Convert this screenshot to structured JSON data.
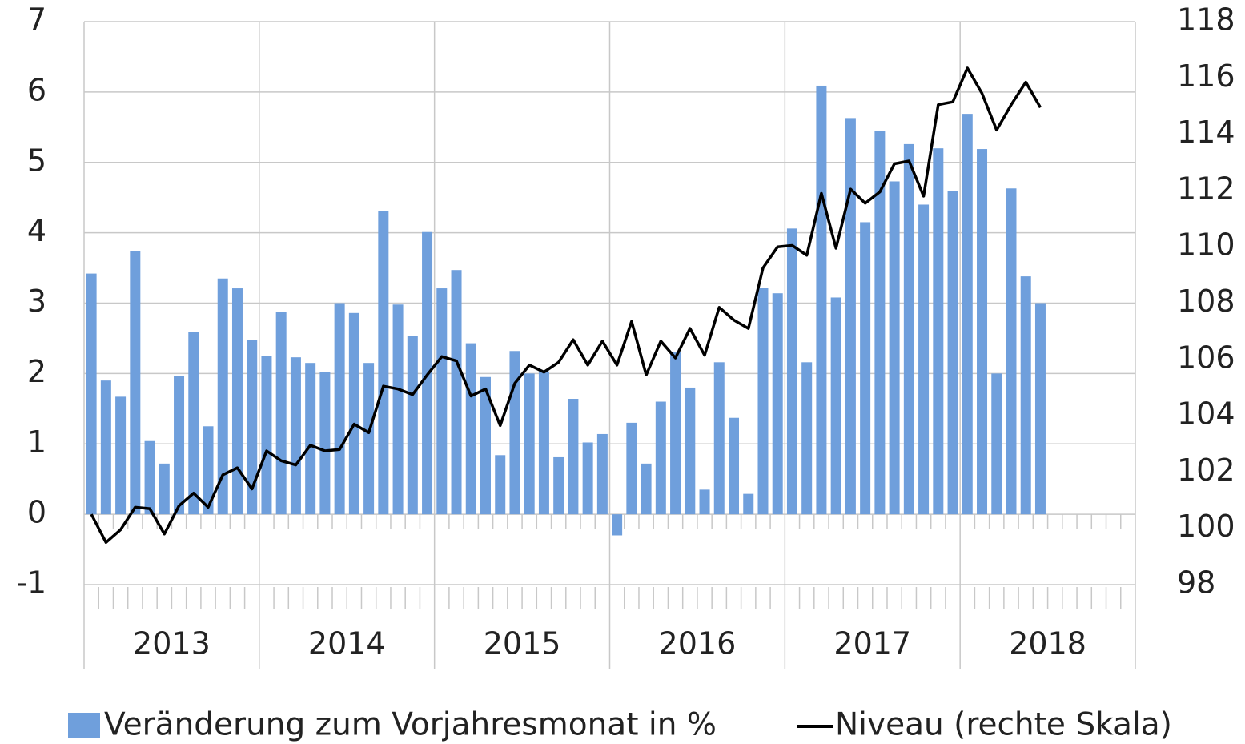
{
  "chart_data": {
    "type": "bar_line",
    "year_labels": [
      "2013",
      "2014",
      "2015",
      "2016",
      "2017",
      "2018"
    ],
    "categories": [
      null,
      null,
      null,
      null,
      null,
      null,
      null,
      null,
      null,
      null,
      null,
      null,
      null,
      null,
      null,
      null,
      null,
      null,
      null,
      null,
      null,
      null,
      null,
      null,
      null,
      null,
      null,
      null,
      null,
      null,
      null,
      null,
      null,
      null,
      null,
      null,
      null,
      null,
      null,
      null,
      null,
      null,
      null,
      null,
      null,
      null,
      null,
      null,
      null,
      null,
      null,
      null,
      null,
      null,
      null,
      null,
      null,
      null,
      null,
      null,
      null,
      null,
      null,
      null,
      null,
      null,
      null,
      null,
      null,
      null,
      null,
      null
    ],
    "series": [
      {
        "name": "Veränderung zum Vorjahresmonat in %",
        "color": "#6f9fdc",
        "type": "bar",
        "values": [
          3.42,
          1.9,
          1.67,
          3.74,
          1.04,
          0.72,
          1.97,
          2.59,
          1.25,
          3.35,
          3.21,
          2.48,
          2.25,
          2.87,
          2.23,
          2.15,
          2.02,
          3.0,
          2.86,
          2.15,
          4.31,
          2.98,
          2.53,
          4.01,
          3.21,
          3.47,
          2.43,
          1.95,
          0.84,
          2.32,
          2.0,
          2.03,
          0.81,
          1.64,
          1.02,
          1.14,
          -0.3,
          1.3,
          0.72,
          1.6,
          2.3,
          1.8,
          0.35,
          2.16,
          1.37,
          0.29,
          3.22,
          3.14,
          4.06,
          2.16,
          6.09,
          3.08,
          5.63,
          4.15,
          5.45,
          4.73,
          5.26,
          4.4,
          5.2,
          4.59,
          5.69,
          5.19,
          2.0,
          4.63,
          3.38,
          3.0,
          null,
          null,
          null,
          null,
          null,
          null
        ]
      },
      {
        "name": "Niveau (rechte Skala)",
        "color": "#000000",
        "type": "line",
        "axis": "y2",
        "values": [
          100.5,
          99.5,
          99.95,
          100.75,
          100.7,
          99.8,
          100.8,
          101.25,
          100.75,
          101.9,
          102.15,
          101.4,
          102.75,
          102.4,
          102.25,
          102.95,
          102.75,
          102.8,
          103.7,
          103.4,
          105.05,
          104.95,
          104.75,
          105.45,
          106.1,
          105.95,
          104.7,
          104.95,
          103.65,
          105.15,
          105.8,
          105.55,
          105.9,
          106.7,
          105.8,
          106.65,
          105.8,
          107.35,
          105.45,
          106.65,
          106.05,
          107.1,
          106.15,
          107.85,
          107.4,
          107.1,
          109.25,
          110.0,
          110.05,
          109.7,
          111.9,
          109.95,
          112.05,
          111.55,
          111.95,
          112.95,
          113.05,
          111.8,
          115.05,
          115.15,
          116.35,
          115.45,
          114.15,
          115.05,
          115.85,
          114.95,
          null,
          null,
          null,
          null,
          null,
          null
        ]
      }
    ],
    "ylim": [
      -1,
      7
    ],
    "yticks": [
      -1,
      0,
      1,
      2,
      3,
      4,
      5,
      6,
      7
    ],
    "y2lim": [
      98,
      118
    ],
    "y2ticks": [
      98,
      100,
      102,
      104,
      106,
      108,
      110,
      112,
      114,
      116,
      118
    ],
    "grid": true
  }
}
